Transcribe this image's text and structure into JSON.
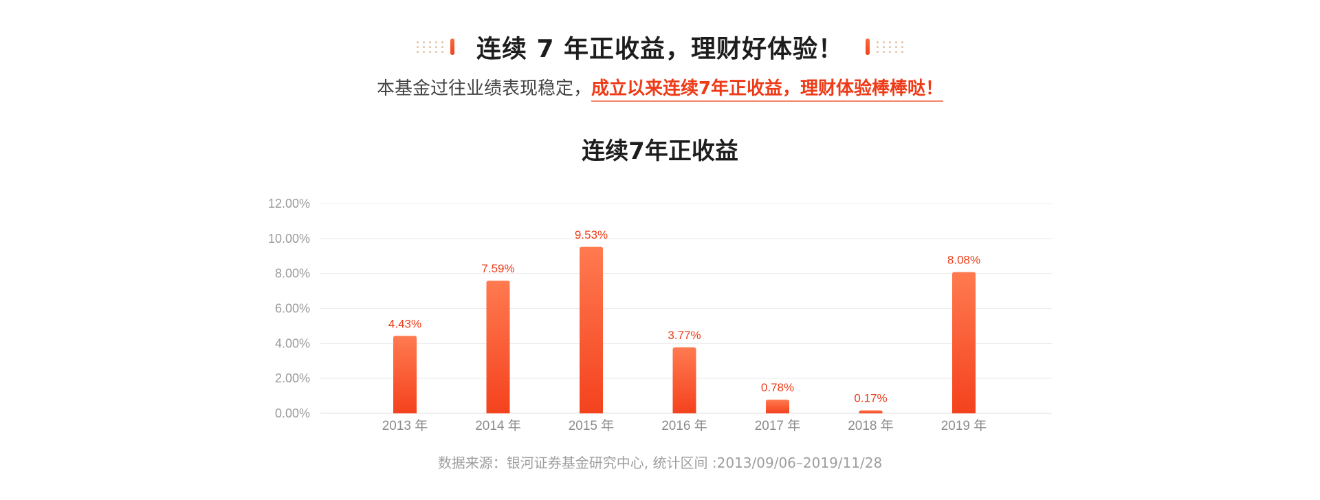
{
  "header": {
    "title": "连续 7 年正收益，理财好体验！"
  },
  "subtitle": {
    "plain": "本基金过往业绩表现稳定，",
    "emphasis": "成立以来连续7年正收益，理财体验棒棒哒！"
  },
  "colors": {
    "accent": "#ee3a17",
    "bar_top": "#ff7a50",
    "bar_bottom": "#f4421e",
    "grid": "#ececec",
    "axis_text": "#9a9a9a"
  },
  "chart_data": {
    "type": "bar",
    "title": "连续7年正收益",
    "categories": [
      "2013 年",
      "2014 年",
      "2015 年",
      "2016 年",
      "2017 年",
      "2018 年",
      "2019 年"
    ],
    "values": [
      4.43,
      7.59,
      9.53,
      3.77,
      0.78,
      0.17,
      8.08
    ],
    "data_labels": [
      "4.43%",
      "7.59%",
      "9.53%",
      "3.77%",
      "0.78%",
      "0.17%",
      "8.08%"
    ],
    "yticks": [
      0,
      2,
      4,
      6,
      8,
      10,
      12
    ],
    "ytick_labels": [
      "0.00%",
      "2.00%",
      "4.00%",
      "6.00%",
      "8.00%",
      "10.00%",
      "12.00%"
    ],
    "ylim": [
      0,
      12
    ],
    "xlabel": "",
    "ylabel": "",
    "grid": true,
    "legend": "none"
  },
  "source_note": "数据来源：银河证券基金研究中心, 统计区间 :2013/09/06–2019/11/28"
}
